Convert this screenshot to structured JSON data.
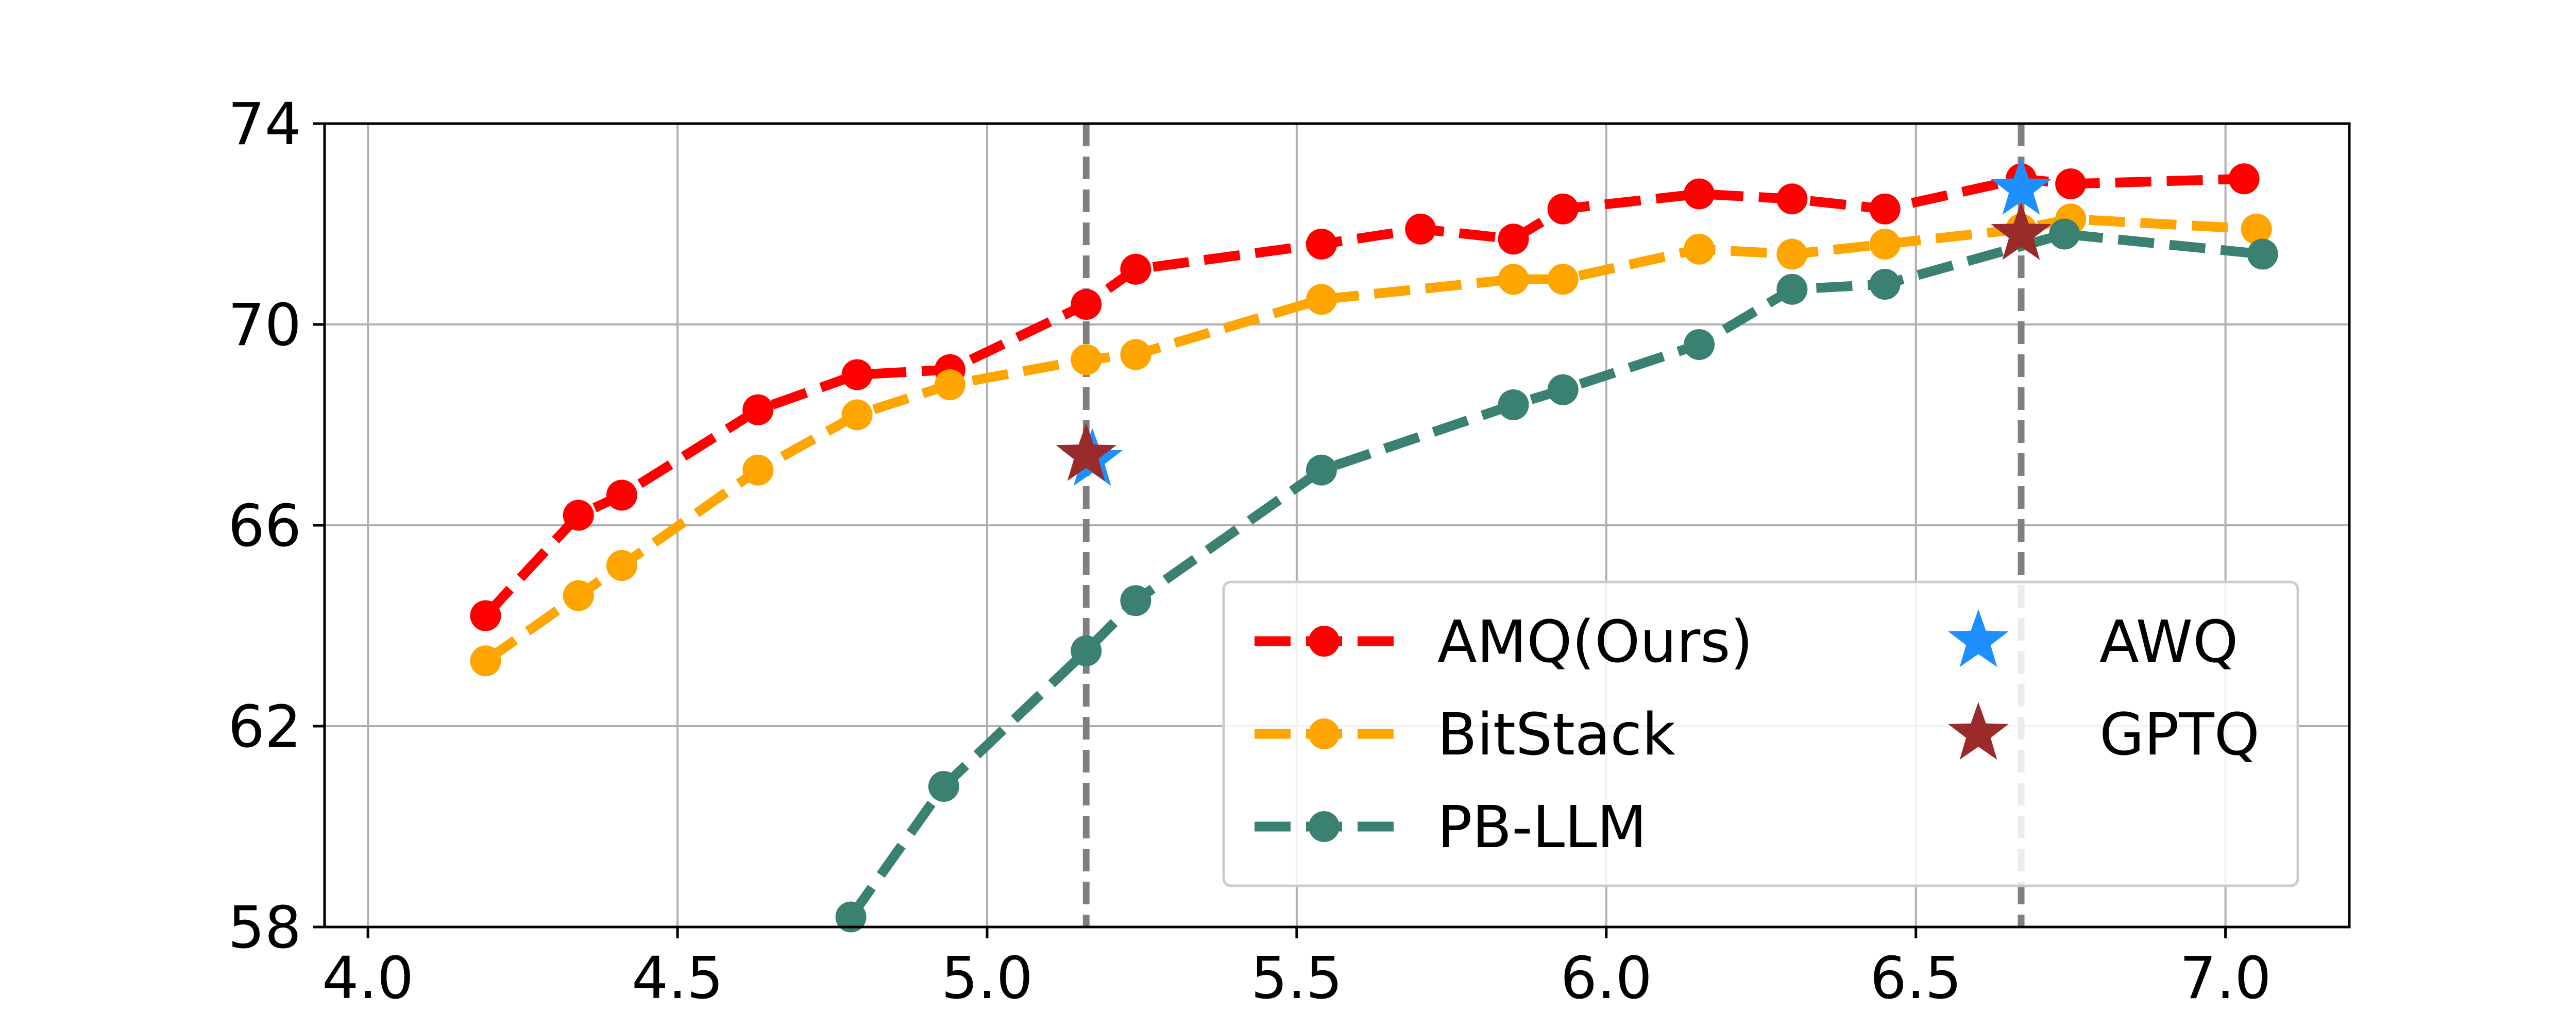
{
  "chart_data": {
    "type": "line",
    "title": "",
    "xlabel": "",
    "ylabel": "",
    "xlim": [
      3.93,
      7.2
    ],
    "ylim": [
      58,
      74
    ],
    "xticks": [
      "4.0",
      "4.5",
      "5.0",
      "5.5",
      "6.0",
      "6.5",
      "7.0"
    ],
    "yticks": [
      "58",
      "62",
      "66",
      "70",
      "74"
    ],
    "grid": true,
    "legend_position": "lower-right",
    "vlines": [
      5.16,
      6.67
    ],
    "series": [
      {
        "name": "AMQ(Ours)",
        "color": "#ff0000",
        "marker": "circle",
        "line": "dashed",
        "x": [
          4.19,
          4.34,
          4.41,
          4.63,
          4.79,
          4.94,
          5.16,
          5.24,
          5.54,
          5.7,
          5.85,
          5.93,
          6.15,
          6.3,
          6.45,
          6.67,
          6.75,
          7.03
        ],
        "y": [
          64.2,
          66.2,
          66.6,
          68.3,
          69.0,
          69.1,
          70.4,
          71.1,
          71.6,
          71.9,
          71.7,
          72.3,
          72.6,
          72.5,
          72.3,
          72.9,
          72.8,
          72.9
        ]
      },
      {
        "name": "BitStack",
        "color": "#ffa500",
        "marker": "circle",
        "line": "dashed",
        "x": [
          4.19,
          4.34,
          4.41,
          4.63,
          4.79,
          4.94,
          5.16,
          5.24,
          5.54,
          5.85,
          5.93,
          6.15,
          6.3,
          6.45,
          6.67,
          6.75,
          7.05
        ],
        "y": [
          63.3,
          64.6,
          65.2,
          67.1,
          68.2,
          68.8,
          69.3,
          69.4,
          70.5,
          70.9,
          70.9,
          71.5,
          71.4,
          71.6,
          71.9,
          72.1,
          71.9
        ]
      },
      {
        "name": "PB-LLM",
        "color": "#3a8172",
        "marker": "circle",
        "line": "dashed",
        "x": [
          4.78,
          4.93,
          5.16,
          5.24,
          5.54,
          5.85,
          5.93,
          6.15,
          6.3,
          6.45,
          6.74,
          7.06
        ],
        "y": [
          58.2,
          60.8,
          63.5,
          64.5,
          67.1,
          68.4,
          68.7,
          69.6,
          70.7,
          70.8,
          71.8,
          71.4
        ]
      }
    ],
    "points": [
      {
        "name": "AWQ",
        "color": "#1e8fff",
        "marker": "star",
        "data": [
          {
            "x": 5.17,
            "y": 67.3
          },
          {
            "x": 6.67,
            "y": 72.7
          }
        ]
      },
      {
        "name": "GPTQ",
        "color": "#9b2b2b",
        "marker": "star",
        "data": [
          {
            "x": 5.16,
            "y": 67.4
          },
          {
            "x": 6.67,
            "y": 71.8
          }
        ]
      }
    ]
  }
}
